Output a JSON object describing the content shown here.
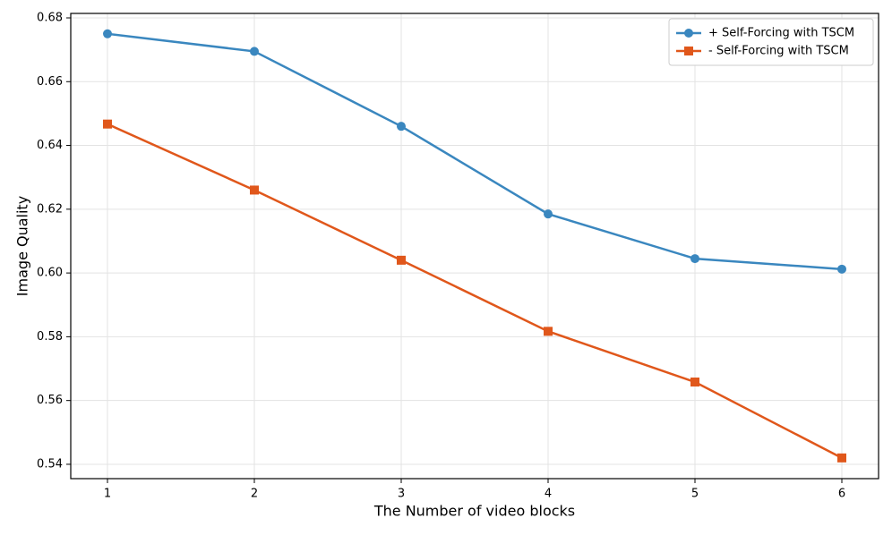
{
  "chart_data": {
    "type": "line",
    "xlabel": "The Number of video blocks",
    "ylabel": "Image Quality",
    "x": [
      1,
      2,
      3,
      4,
      5,
      6
    ],
    "xlim": [
      0.75,
      6.25
    ],
    "xticks": [
      1,
      2,
      3,
      4,
      5,
      6
    ],
    "ylim": [
      0.5355,
      0.6814
    ],
    "yticks": [
      0.54,
      0.56,
      0.58,
      {
        "value": 0.6,
        "label": "0.60"
      },
      0.62,
      0.64,
      0.66,
      0.68
    ],
    "grid": true,
    "legend": "upper right",
    "series": [
      {
        "name": "+ Self-Forcing with TSCM",
        "color": "#3a87bf",
        "marker": "circle",
        "values": [
          0.675,
          0.6695,
          0.646,
          0.6185,
          0.6045,
          0.6012
        ]
      },
      {
        "name": "- Self-Forcing with TSCM",
        "color": "#e0571b",
        "marker": "square",
        "values": [
          0.6467,
          0.626,
          0.604,
          0.5817,
          0.5658,
          0.542
        ]
      }
    ]
  }
}
